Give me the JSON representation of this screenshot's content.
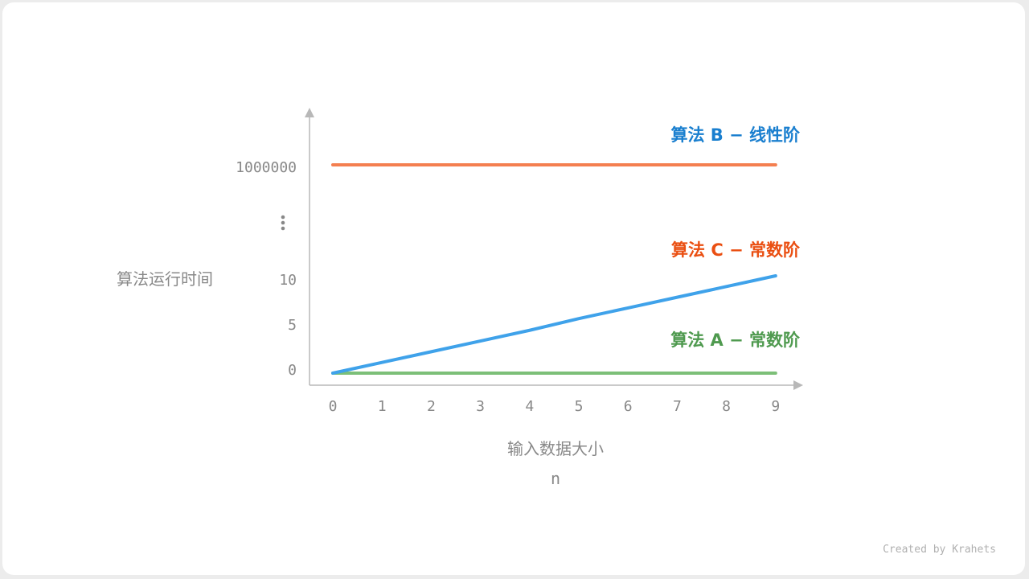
{
  "chart_data": {
    "type": "line",
    "xlabel": "输入数据大小",
    "xlabel_sub": "n",
    "ylabel": "算法运行时间",
    "x": [
      0,
      1,
      2,
      3,
      4,
      5,
      6,
      7,
      8,
      9
    ],
    "x_tick_labels": [
      "0",
      "1",
      "2",
      "3",
      "4",
      "5",
      "6",
      "7",
      "8",
      "9"
    ],
    "y_tick_labels": [
      "0",
      "5",
      "10",
      "⋮",
      "1000000"
    ],
    "y_axis_break": true,
    "grid": false,
    "series": [
      {
        "name": "算法 A − 常数阶",
        "values": [
          0,
          0,
          0,
          0,
          0,
          0,
          0,
          0,
          0,
          0
        ],
        "color": "#7cbf78",
        "label_color": "#4f9a4f"
      },
      {
        "name": "算法 B − 线性阶",
        "values": [
          0,
          1.1,
          2.2,
          3.3,
          4.4,
          5.6,
          6.7,
          7.8,
          8.9,
          10
        ],
        "color": "#3fa2ea",
        "label_color": "#1a7fcf"
      },
      {
        "name": "算法 C − 常数阶",
        "values": [
          1000000,
          1000000,
          1000000,
          1000000,
          1000000,
          1000000,
          1000000,
          1000000,
          1000000,
          1000000
        ],
        "color": "#f47f50",
        "label_color": "#ea4f12"
      }
    ]
  },
  "credit": "Created by Krahets"
}
